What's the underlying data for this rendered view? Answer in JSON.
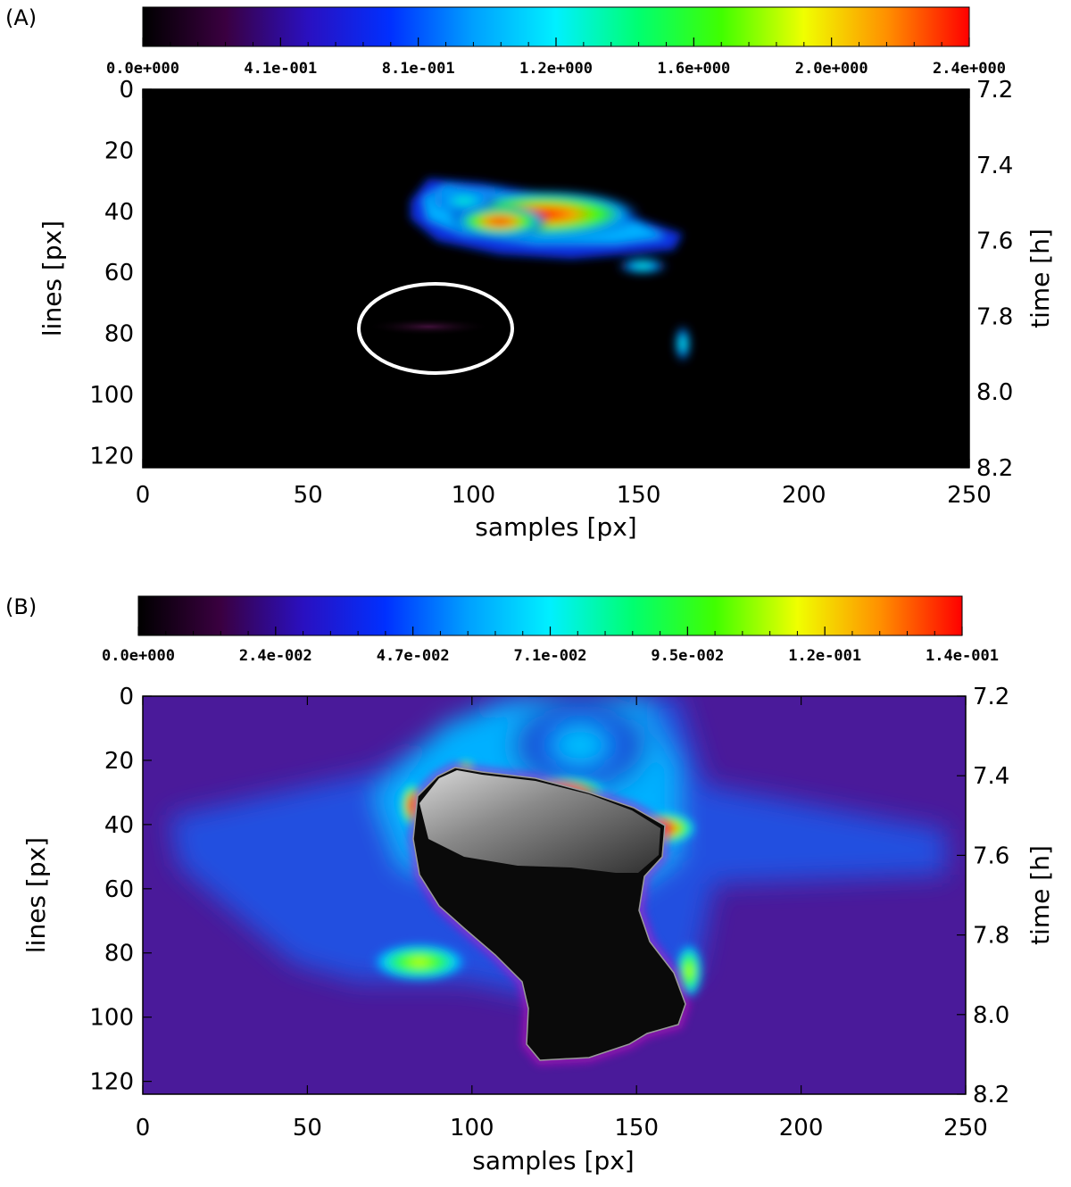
{
  "chart_data": [
    {
      "type": "heatmap",
      "panel_label": "(A)",
      "colorbar": {
        "tick_labels": [
          "0.0e+000",
          "4.1e-001",
          "8.1e-001",
          "1.2e+000",
          "1.6e+000",
          "2.0e+000",
          "2.4e+000"
        ],
        "range": [
          0,
          2.4
        ],
        "colormap": [
          "#000000",
          "#3a0040",
          "#2a10c0",
          "#0030ff",
          "#00a0ff",
          "#00f0ff",
          "#00ff70",
          "#40ff00",
          "#f0ff00",
          "#ff9000",
          "#ff0000"
        ]
      },
      "xlabel": "samples [px]",
      "ylabel_left": "lines [px]",
      "ylabel_right": "time [h]",
      "x_ticks": [
        "0",
        "50",
        "100",
        "150",
        "200",
        "250"
      ],
      "y_ticks_left": [
        "0",
        "20",
        "40",
        "60",
        "80",
        "100",
        "120"
      ],
      "y_ticks_right": [
        "7.2",
        "7.4",
        "7.6",
        "7.8",
        "8.0",
        "8.2"
      ],
      "xlim": [
        0,
        250
      ],
      "ylim_lines": [
        0,
        124
      ],
      "ylim_time": [
        7.2,
        8.2
      ],
      "annotation": "white ellipse around faint emission near samples 90, line 80"
    },
    {
      "type": "heatmap",
      "panel_label": "(B)",
      "colorbar": {
        "tick_labels": [
          "0.0e+000",
          "2.4e-002",
          "4.7e-002",
          "7.1e-002",
          "9.5e-002",
          "1.2e-001",
          "1.4e-001"
        ],
        "range": [
          0,
          0.14
        ],
        "colormap": [
          "#000000",
          "#3a0040",
          "#2a10c0",
          "#0030ff",
          "#00a0ff",
          "#00f0ff",
          "#00ff70",
          "#40ff00",
          "#f0ff00",
          "#ff9000",
          "#ff0000"
        ]
      },
      "xlabel": "samples [px]",
      "ylabel_left": "lines [px]",
      "ylabel_right": "time [h]",
      "x_ticks": [
        "0",
        "50",
        "100",
        "150",
        "200",
        "250"
      ],
      "y_ticks_left": [
        "0",
        "20",
        "40",
        "60",
        "80",
        "100",
        "120"
      ],
      "y_ticks_right": [
        "7.2",
        "7.4",
        "7.6",
        "7.8",
        "8.0",
        "8.2"
      ],
      "xlim": [
        0,
        250
      ],
      "ylim_lines": [
        0,
        124
      ],
      "ylim_time": [
        7.2,
        8.2
      ]
    }
  ]
}
